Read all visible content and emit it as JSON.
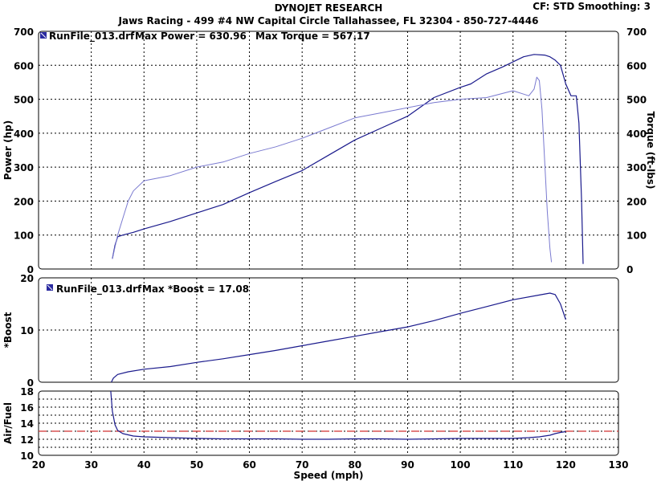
{
  "header": {
    "title": "DYNOJET RESEARCH",
    "subtitle": "Jaws Racing - 499 #4 NW Capital Circle Tallahassee, FL 32304 - 850-727-4446",
    "cf_info": "CF: STD  Smoothing: 3"
  },
  "colors": {
    "power": "#1a1a8c",
    "torque": "#7a7ad0",
    "target_line": "#d03030",
    "grid": "#000000",
    "legend_icon": "#2a2aa0"
  },
  "chart_data": [
    {
      "type": "line",
      "panel": "power-torque",
      "legend": {
        "file": "RunFile_013.drf",
        "text1": "Max Power = 630.96",
        "text2": "Max Torque = 567.17"
      },
      "ylabel": "Power (hp)",
      "ylabel_right": "Torque (ft-lbs)",
      "xlim": [
        20,
        130
      ],
      "ylim": [
        0,
        700
      ],
      "yticks": [
        0,
        100,
        200,
        300,
        400,
        500,
        600,
        700
      ],
      "grid": true,
      "series": [
        {
          "name": "Power",
          "axis": "left",
          "x": [
            34,
            34.5,
            35,
            36,
            38,
            40,
            45,
            50,
            55,
            60,
            65,
            70,
            75,
            80,
            85,
            90,
            95,
            100,
            102,
            105,
            108,
            110,
            112,
            114,
            116,
            117,
            118,
            119,
            120,
            121,
            122,
            122.5,
            123,
            123.3
          ],
          "y": [
            30,
            70,
            95,
            100,
            108,
            118,
            140,
            165,
            190,
            225,
            258,
            290,
            335,
            380,
            415,
            450,
            505,
            535,
            545,
            575,
            595,
            610,
            625,
            632,
            630,
            625,
            615,
            600,
            545,
            510,
            510,
            430,
            200,
            15
          ]
        },
        {
          "name": "Torque",
          "axis": "right",
          "x": [
            34,
            35,
            36,
            37,
            38,
            40,
            45,
            50,
            55,
            60,
            65,
            70,
            75,
            80,
            85,
            90,
            95,
            100,
            105,
            110,
            112,
            113,
            114,
            114.5,
            115,
            115.5,
            116,
            116.5,
            117,
            117.3
          ],
          "y": [
            30,
            100,
            150,
            200,
            230,
            260,
            275,
            300,
            315,
            340,
            360,
            385,
            415,
            445,
            460,
            475,
            490,
            500,
            505,
            525,
            515,
            510,
            530,
            565,
            555,
            470,
            320,
            170,
            60,
            20
          ]
        }
      ]
    },
    {
      "type": "line",
      "panel": "boost",
      "legend": {
        "file": "RunFile_013.drf",
        "text1": "Max *Boost = 17.08"
      },
      "ylabel": "*Boost",
      "xlim": [
        20,
        130
      ],
      "ylim": [
        0,
        20
      ],
      "yticks": [
        0,
        10,
        20
      ],
      "grid": true,
      "series": [
        {
          "name": "*Boost",
          "x": [
            33.8,
            34.2,
            35,
            37,
            40,
            45,
            50,
            55,
            60,
            65,
            70,
            75,
            80,
            85,
            90,
            95,
            100,
            105,
            110,
            115,
            117,
            118,
            119,
            120
          ],
          "y": [
            0,
            0.8,
            1.5,
            2,
            2.5,
            3,
            3.8,
            4.5,
            5.3,
            6.1,
            7,
            7.9,
            8.8,
            9.7,
            10.6,
            11.8,
            13.2,
            14.5,
            15.8,
            16.7,
            17.08,
            16.8,
            15,
            12
          ]
        }
      ]
    },
    {
      "type": "line",
      "panel": "air-fuel",
      "ylabel": "Air/Fuel",
      "xlabel": "Speed (mph)",
      "xlim": [
        20,
        130
      ],
      "xticks": [
        20,
        30,
        40,
        50,
        60,
        70,
        80,
        90,
        100,
        110,
        120,
        130
      ],
      "ylim": [
        10,
        18
      ],
      "yticks": [
        10,
        12,
        14,
        16,
        18
      ],
      "grid": true,
      "target_afr": 13,
      "series": [
        {
          "name": "Air/Fuel",
          "x": [
            33.7,
            34,
            34.5,
            35,
            36,
            38,
            40,
            45,
            50,
            55,
            60,
            65,
            70,
            75,
            80,
            85,
            90,
            95,
            100,
            105,
            110,
            113,
            115,
            117,
            118,
            119,
            120
          ],
          "y": [
            18,
            15.5,
            13.8,
            13.1,
            12.7,
            12.4,
            12.3,
            12.2,
            12.1,
            12.05,
            12.05,
            12.05,
            12.0,
            12.0,
            12.05,
            12.05,
            12.0,
            12.05,
            12.1,
            12.1,
            12.1,
            12.2,
            12.3,
            12.5,
            12.7,
            12.85,
            12.95
          ]
        }
      ]
    }
  ]
}
